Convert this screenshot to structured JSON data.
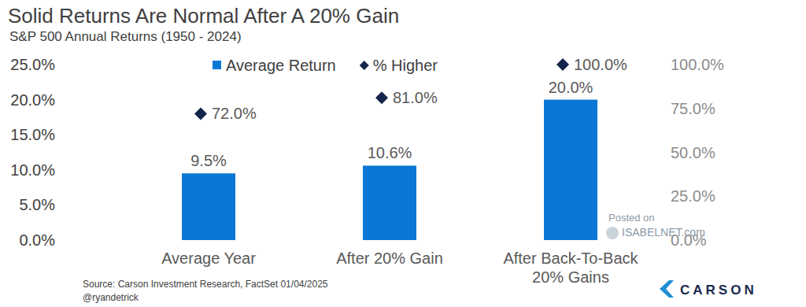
{
  "chart_data": {
    "type": "bar",
    "title": "Solid Returns Are Normal After A 20% Gain",
    "subtitle": "S&P 500 Annual Returns (1950 - 2024)",
    "categories": [
      "Average Year",
      "After 20% Gain",
      "After Back-To-Back 20% Gains"
    ],
    "series": [
      {
        "name": "Average Return",
        "type": "bar",
        "color": "#0a77d5",
        "values": [
          9.5,
          10.6,
          20.0
        ],
        "value_labels": [
          "9.5%",
          "10.6%",
          "20.0%"
        ]
      },
      {
        "name": "% Higher",
        "type": "scatter",
        "marker": "diamond",
        "color": "#14244a",
        "axis": "y2",
        "values": [
          72,
          81,
          100
        ],
        "value_labels": [
          "72.0%",
          "81.0%",
          "100.0%"
        ]
      }
    ],
    "ylim": [
      0,
      25
    ],
    "yticks": [
      {
        "value": 0,
        "label": "0.0%"
      },
      {
        "value": 5,
        "label": "5.0%"
      },
      {
        "value": 10,
        "label": "10.0%"
      },
      {
        "value": 15,
        "label": "15.0%"
      },
      {
        "value": 20,
        "label": "20.0%"
      },
      {
        "value": 25,
        "label": "25.0%"
      }
    ],
    "y2lim": [
      0,
      100
    ],
    "y2ticks": [
      {
        "value": 0,
        "label": "0.0%"
      },
      {
        "value": 25,
        "label": "25.0%"
      },
      {
        "value": 50,
        "label": "50.0%"
      },
      {
        "value": 75,
        "label": "75.0%"
      },
      {
        "value": 100,
        "label": "100.0%"
      }
    ],
    "legend": "top",
    "data_labels": true,
    "grid": false,
    "source": "Source: Carson Investment Research, FactSet 01/04/2025",
    "credit": "@ryandetrick",
    "watermark": [
      "Posted on",
      "ISABELNET.com"
    ],
    "logo": "CARSON"
  }
}
